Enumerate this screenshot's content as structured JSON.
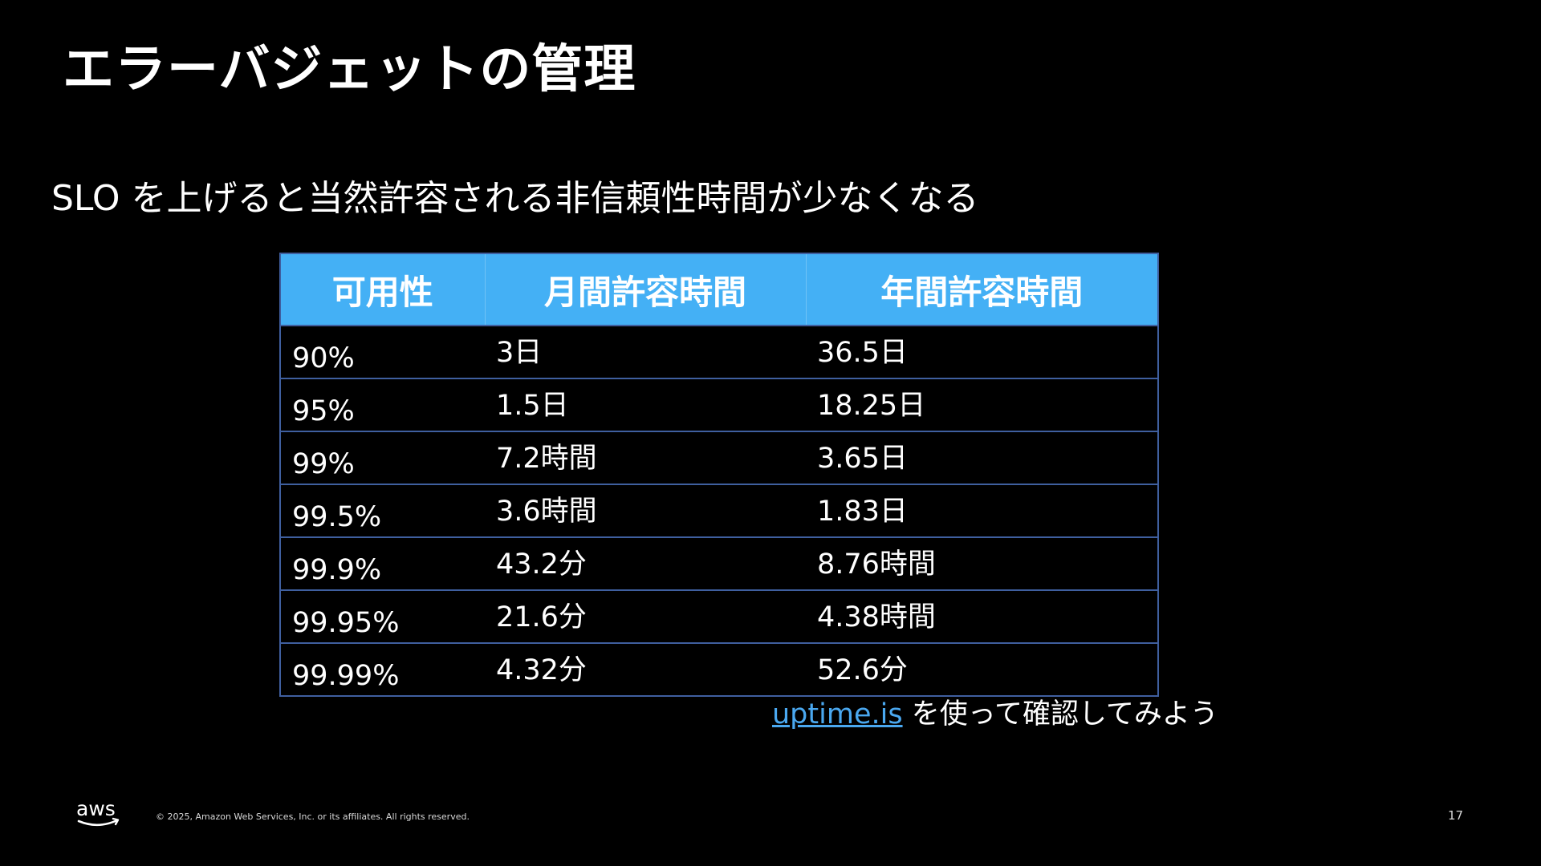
{
  "slide": {
    "title": "エラーバジェットの管理",
    "subtitle": "SLO を上げると当然許容される非信頼性時間が少なくなる"
  },
  "table": {
    "headers": [
      "可用性",
      "月間許容時間",
      "年間許容時間"
    ],
    "rows": [
      [
        "90%",
        "3日",
        "36.5日"
      ],
      [
        "95%",
        "1.5日",
        "18.25日"
      ],
      [
        "99%",
        "7.2時間",
        "3.65日"
      ],
      [
        "99.5%",
        "3.6時間",
        "1.83日"
      ],
      [
        "99.9%",
        "43.2分",
        "8.76時間"
      ],
      [
        "99.95%",
        "21.6分",
        "4.38時間"
      ],
      [
        "99.99%",
        "4.32分",
        "52.6分"
      ]
    ]
  },
  "note": {
    "link_text": "uptime.is",
    "text": "を使って確認してみよう"
  },
  "footer": {
    "logo_text": "aws",
    "copyright": "© 2025, Amazon Web Services, Inc. or its affiliates. All rights reserved.",
    "page_number": "17"
  },
  "colors": {
    "background": "#000000",
    "header_fill": "#44b0f5",
    "table_border": "#3f5f9f",
    "link": "#4aa8f0"
  }
}
